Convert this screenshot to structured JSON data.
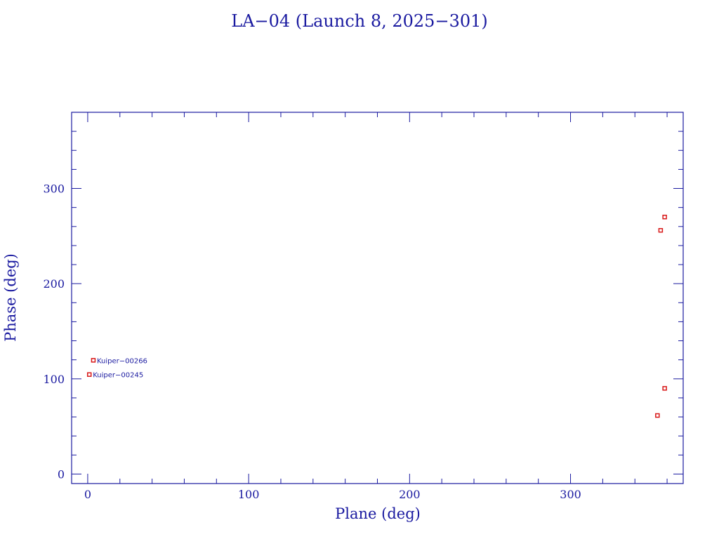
{
  "chart_data": {
    "type": "scatter",
    "title": "LA−04 (Launch 8, 2025−301)",
    "xlabel": "Plane (deg)",
    "ylabel": "Phase (deg)",
    "xlim": [
      -10,
      370
    ],
    "ylim": [
      -10,
      380
    ],
    "x_ticks": [
      0,
      100,
      200,
      300
    ],
    "y_ticks": [
      0,
      100,
      200,
      300
    ],
    "x_minor_step": 20,
    "y_minor_step": 20,
    "tick_labels": {
      "x": [
        "0",
        "100",
        "200",
        "300"
      ],
      "y": [
        "0",
        "100",
        "200",
        "300"
      ]
    },
    "points": [
      {
        "x": 3.5,
        "y": 119.5,
        "label": "Kuiper−00266"
      },
      {
        "x": 1.0,
        "y": 104.5,
        "label": "Kuiper−00245"
      },
      {
        "x": 358.5,
        "y": 270.0,
        "label": ""
      },
      {
        "x": 356.0,
        "y": 256.0,
        "label": ""
      },
      {
        "x": 358.5,
        "y": 90.0,
        "label": ""
      },
      {
        "x": 354.0,
        "y": 61.5,
        "label": ""
      }
    ],
    "grid": false,
    "colors": {
      "axes": "#1a1aa0",
      "marker": "#d81818"
    }
  }
}
